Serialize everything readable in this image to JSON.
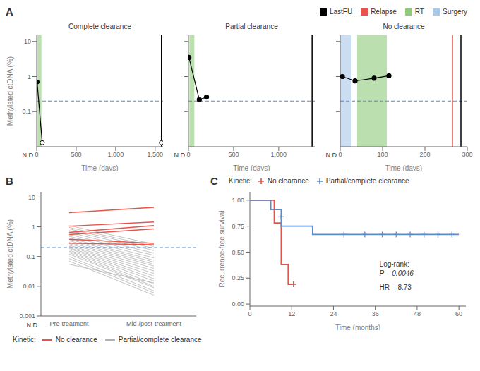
{
  "chart_data": [
    {
      "type": "line",
      "panel_label": "A",
      "title": "Complete clearance",
      "xlabel": "Time (days)",
      "ylabel": "Methylated ctDNA (%)",
      "log": "y",
      "xlim": [
        0,
        1600
      ],
      "xticks": [
        0,
        500,
        {
          "value": 1000,
          "label": "1,000"
        },
        {
          "value": 1500,
          "label": "1,500"
        }
      ],
      "ylim": [
        0.01,
        15
      ],
      "yticks": [
        0.1,
        1,
        10
      ],
      "legend_items": [
        {
          "name": "LastFU",
          "color": "#000000"
        },
        {
          "name": "Relapse",
          "color": "#e8534a"
        },
        {
          "name": "RT",
          "color": "#90c97a"
        },
        {
          "name": "Surgery",
          "color": "#a8c8e8"
        }
      ],
      "spans": [
        {
          "name": "RT",
          "color": "#90c97a",
          "x": [
            10,
            60
          ]
        }
      ],
      "vlines": [
        {
          "name": "LastFU",
          "color": "#000000",
          "x": 1580
        }
      ],
      "reference_lines": [
        {
          "y": 0.2,
          "color": "#5b8cc8",
          "line_style": "dashed"
        }
      ],
      "annotations": [
        "N.D"
      ],
      "series": [
        {
          "type": "line",
          "color": "#000000",
          "marker": "none",
          "x": [
            5,
            70
          ],
          "values": [
            0.7,
            0.013
          ]
        },
        {
          "type": "scatter",
          "color": "#000000",
          "marker": "circle",
          "x": [
            5
          ],
          "values": [
            0.7
          ]
        },
        {
          "type": "scatter",
          "color": "#000000",
          "marker": "open_circle",
          "x": [
            70,
            1580
          ],
          "values": [
            0.013,
            0.013
          ]
        }
      ]
    },
    {
      "type": "line",
      "title": "Partial clearance",
      "xlabel": "Time (days)",
      "log": "y",
      "tick_labels": "x",
      "xlim": [
        0,
        1400
      ],
      "xticks": [
        0,
        500,
        {
          "value": 1000,
          "label": "1,000"
        }
      ],
      "ylim": [
        0.01,
        15
      ],
      "yticks": [
        0.1,
        1,
        10
      ],
      "spans": [
        {
          "name": "RT",
          "color": "#90c97a",
          "x": [
            10,
            65
          ]
        }
      ],
      "vlines": [
        {
          "name": "LastFU",
          "color": "#000000",
          "x": 1370
        }
      ],
      "reference_lines": [
        {
          "y": 0.2,
          "color": "#5b8cc8",
          "line_style": "dashed"
        }
      ],
      "annotations": [
        "N.D"
      ],
      "series": [
        {
          "type": "line",
          "color": "#000000",
          "marker": "circle",
          "x": [
            5,
            120,
            200
          ],
          "values": [
            3.5,
            0.22,
            0.26
          ]
        }
      ]
    },
    {
      "type": "line",
      "title": "No clearance",
      "xlabel": "Time (days)",
      "log": "y",
      "tick_labels": "x",
      "xlim": [
        0,
        300
      ],
      "xticks": [
        0,
        100,
        200,
        300
      ],
      "ylim": [
        0.01,
        15
      ],
      "yticks": [
        0.1,
        1,
        10
      ],
      "spans": [
        {
          "name": "Surgery",
          "color": "#a8c8e8",
          "x": [
            0,
            25
          ]
        },
        {
          "name": "RT",
          "color": "#90c97a",
          "x": [
            40,
            110
          ]
        }
      ],
      "vlines": [
        {
          "name": "Relapse",
          "color": "#e8534a",
          "x": 265
        },
        {
          "name": "LastFU",
          "color": "#000000",
          "x": 285
        }
      ],
      "reference_lines": [
        {
          "y": 0.2,
          "color": "#5b8cc8",
          "line_style": "dashed"
        }
      ],
      "annotations": [
        "N.D"
      ],
      "series": [
        {
          "type": "line",
          "color": "#000000",
          "marker": "circle",
          "x": [
            5,
            35,
            80,
            115
          ],
          "values": [
            1.0,
            0.75,
            0.9,
            1.05
          ]
        }
      ]
    },
    {
      "type": "line",
      "panel_label": "B",
      "ylabel": "Methylated ctDNA (%)",
      "log": "y",
      "categories": [
        "Pre-treatment",
        "Mid-/post-treatment"
      ],
      "ylim": [
        0.001,
        15
      ],
      "yticks": [
        0.001,
        0.01,
        0.1,
        1,
        10
      ],
      "reference_lines": [
        {
          "y": 0.2,
          "color": "#5b8cc8",
          "line_style": "dashed"
        }
      ],
      "annotations": [
        "N.D"
      ],
      "legend_title": "Kinetic:",
      "series": [
        {
          "name": "No clearance",
          "color": "#e8534a",
          "values": [
            [
              3.0,
              4.5
            ],
            [
              1.05,
              1.45
            ],
            [
              0.65,
              1.1
            ],
            [
              0.55,
              0.85
            ],
            [
              0.38,
              0.28
            ],
            [
              0.28,
              0.25
            ]
          ]
        },
        {
          "name": "Partial/complete clearance",
          "color": "#b0b0b0",
          "values": [
            [
              1.1,
              0.26
            ],
            [
              0.95,
              0.22
            ],
            [
              0.85,
              0.19
            ],
            [
              0.75,
              0.16
            ],
            [
              0.65,
              0.13
            ],
            [
              0.55,
              0.11
            ],
            [
              0.48,
              0.09
            ],
            [
              0.42,
              0.075
            ],
            [
              0.38,
              0.065
            ],
            [
              0.34,
              0.055
            ],
            [
              0.3,
              0.048
            ],
            [
              0.27,
              0.04
            ],
            [
              0.24,
              0.033
            ],
            [
              0.22,
              0.027
            ],
            [
              0.2,
              0.022
            ],
            [
              0.185,
              0.018
            ],
            [
              0.165,
              0.015
            ],
            [
              0.15,
              0.012
            ],
            [
              0.135,
              0.01
            ],
            [
              0.12,
              0.009
            ],
            [
              0.1,
              0.007
            ],
            [
              0.085,
              0.006
            ],
            [
              0.07,
              0.005
            ],
            [
              0.055,
              0.013
            ]
          ]
        }
      ]
    },
    {
      "type": "line",
      "panel_label": "C",
      "xlabel": "Time (months)",
      "ylabel": "Recurrence-free survival",
      "xlim": [
        0,
        62
      ],
      "xticks": [
        0,
        12,
        24,
        36,
        48,
        60
      ],
      "ylim": [
        -0.02,
        1.08
      ],
      "yticks": [
        {
          "value": 0.0,
          "label": "0.00"
        },
        0.25,
        {
          "value": 0.5,
          "label": "0.50"
        },
        0.75,
        {
          "value": 1.0,
          "label": "1.00"
        }
      ],
      "legend_title": "Kinetic:",
      "annotations": [
        "Log-rank:",
        "P = 0.0046",
        "HR = 8.73"
      ],
      "series": [
        {
          "name": "No clearance",
          "type": "step",
          "color": "#e8534a",
          "marker": "none",
          "x": [
            0,
            7,
            7,
            9,
            9,
            11,
            11,
            12.5
          ],
          "values": [
            1.0,
            1.0,
            0.78,
            0.78,
            0.38,
            0.38,
            0.19,
            0.19
          ]
        },
        {
          "type": "scatter",
          "color": "#e8534a",
          "marker": "plus",
          "x": [
            12.5
          ],
          "values": [
            0.19
          ]
        },
        {
          "name": "Partial/complete clearance",
          "type": "step",
          "color": "#5b8cc8",
          "marker": "none",
          "x": [
            0,
            6,
            6,
            9,
            9,
            18,
            18,
            60
          ],
          "values": [
            1.0,
            1.0,
            0.91,
            0.91,
            0.75,
            0.75,
            0.67,
            0.67
          ]
        },
        {
          "type": "scatter",
          "color": "#5b8cc8",
          "marker": "plus",
          "x": [
            9,
            27,
            33,
            38,
            42,
            46,
            50,
            54,
            58
          ],
          "values": [
            0.84,
            0.67,
            0.67,
            0.67,
            0.67,
            0.67,
            0.67,
            0.67,
            0.67
          ]
        }
      ]
    }
  ]
}
